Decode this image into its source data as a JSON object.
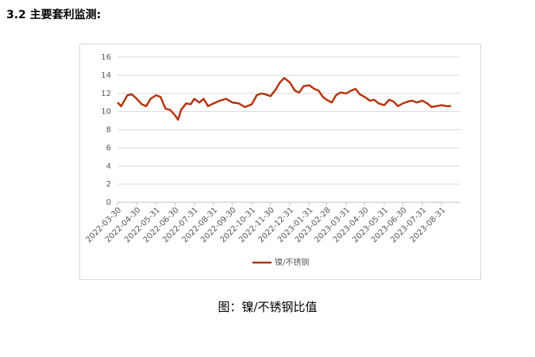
{
  "header": {
    "title": "3.2 主要套利监测:"
  },
  "chart_data": {
    "type": "line",
    "x": [
      "2022-03-30",
      "2022-04-05",
      "2022-04-15",
      "2022-04-22",
      "2022-04-30",
      "2022-05-08",
      "2022-05-15",
      "2022-05-22",
      "2022-05-31",
      "2022-06-07",
      "2022-06-15",
      "2022-06-22",
      "2022-06-30",
      "2022-07-05",
      "2022-07-10",
      "2022-07-18",
      "2022-07-25",
      "2022-07-31",
      "2022-08-08",
      "2022-08-15",
      "2022-08-22",
      "2022-08-31",
      "2022-09-10",
      "2022-09-20",
      "2022-09-30",
      "2022-10-10",
      "2022-10-20",
      "2022-10-31",
      "2022-11-08",
      "2022-11-15",
      "2022-11-22",
      "2022-11-30",
      "2022-12-08",
      "2022-12-15",
      "2022-12-22",
      "2022-12-31",
      "2023-01-08",
      "2023-01-15",
      "2023-01-22",
      "2023-01-31",
      "2023-02-08",
      "2023-02-15",
      "2023-02-22",
      "2023-02-28",
      "2023-03-08",
      "2023-03-15",
      "2023-03-22",
      "2023-03-31",
      "2023-04-08",
      "2023-04-15",
      "2023-04-22",
      "2023-04-30",
      "2023-05-08",
      "2023-05-15",
      "2023-05-22",
      "2023-05-31",
      "2023-06-08",
      "2023-06-15",
      "2023-06-22",
      "2023-06-30",
      "2023-07-08",
      "2023-07-15",
      "2023-07-22",
      "2023-07-31",
      "2023-08-08",
      "2023-08-15",
      "2023-08-22",
      "2023-08-31",
      "2023-09-08",
      "2023-09-15"
    ],
    "series": [
      {
        "name": "镍/不锈钢",
        "color": "#b5360f",
        "values": [
          11.0,
          10.6,
          11.8,
          11.9,
          11.4,
          10.8,
          10.6,
          11.4,
          11.8,
          11.6,
          10.3,
          10.2,
          9.6,
          9.1,
          10.2,
          10.9,
          10.8,
          11.4,
          11.0,
          11.4,
          10.6,
          10.9,
          11.2,
          11.4,
          11.0,
          10.9,
          10.5,
          10.8,
          11.8,
          12.0,
          11.9,
          11.7,
          12.4,
          13.2,
          13.7,
          13.2,
          12.3,
          12.1,
          12.8,
          12.9,
          12.5,
          12.3,
          11.6,
          11.3,
          11.0,
          11.8,
          12.1,
          12.0,
          12.3,
          12.5,
          11.9,
          11.6,
          11.2,
          11.3,
          10.9,
          10.7,
          11.3,
          11.1,
          10.6,
          10.9,
          11.1,
          11.2,
          11.0,
          11.2,
          10.9,
          10.5,
          10.6,
          10.7,
          10.6,
          10.6
        ]
      }
    ],
    "xlim": [
      "2022-03-30",
      "2023-09-30"
    ],
    "xticks": [
      "2022-03-30",
      "2022-04-30",
      "2022-05-31",
      "2022-06-30",
      "2022-07-31",
      "2022-08-31",
      "2022-09-30",
      "2022-10-31",
      "2022-11-30",
      "2022-12-31",
      "2023-01-31",
      "2023-02-28",
      "2023-03-31",
      "2023-04-30",
      "2023-05-31",
      "2023-06-30",
      "2023-07-31",
      "2023-08-31"
    ],
    "ylim": [
      0,
      16
    ],
    "yticks": [
      0,
      2,
      4,
      6,
      8,
      10,
      12,
      14,
      16
    ],
    "grid": true,
    "legend": "bottom"
  },
  "caption": "图：镍/不锈钢比值"
}
